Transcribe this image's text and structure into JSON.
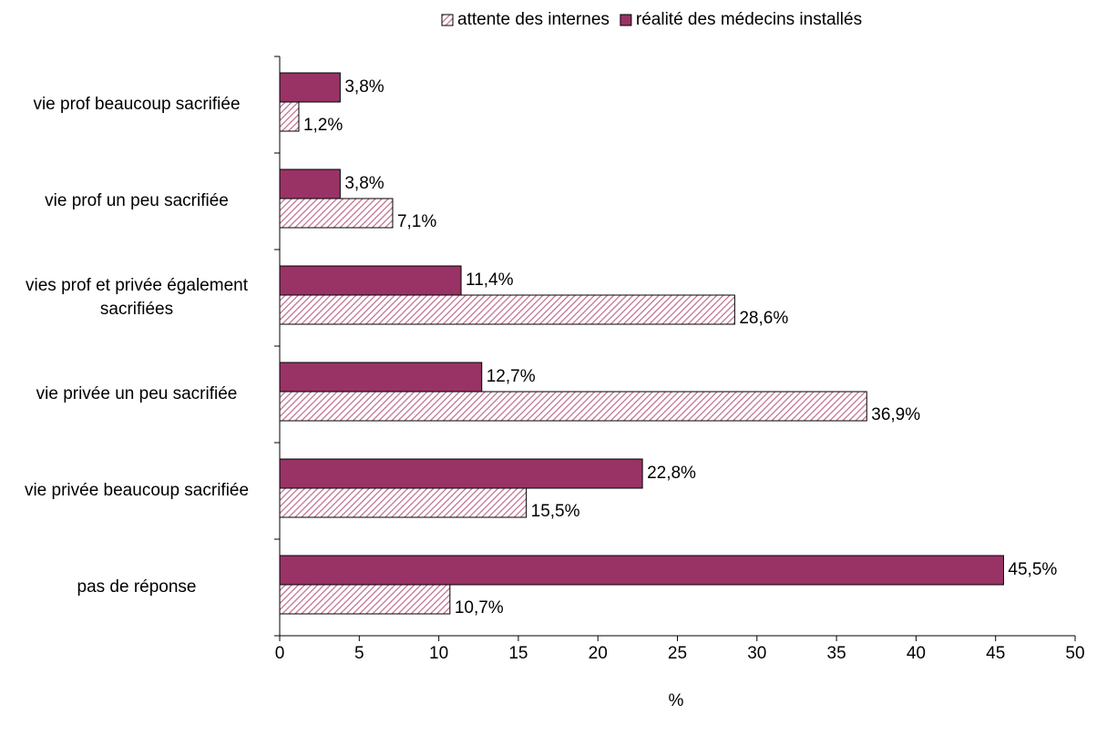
{
  "chart_data": {
    "type": "hbar",
    "categories": [
      "vie prof beaucoup sacrifiée",
      "vie prof un peu sacrifiée",
      "vies prof et privée également sacrifiées",
      "vie privée un peu sacrifiée",
      "vie privée beaucoup sacrifiée",
      "pas de réponse"
    ],
    "series": [
      {
        "name": "attente des internes",
        "color": "#993366",
        "hatch": true,
        "values": [
          1.2,
          7.1,
          28.6,
          36.9,
          15.5,
          10.7
        ],
        "value_labels": [
          "1,2%",
          "7,1%",
          "28,6%",
          "36,9%",
          "15,5%",
          "10,7%"
        ]
      },
      {
        "name": "réalité des médecins installés",
        "color": "#993366",
        "hatch": false,
        "values": [
          3.8,
          3.8,
          11.4,
          12.7,
          22.8,
          45.5
        ],
        "value_labels": [
          "3,8%",
          "3,8%",
          "11,4%",
          "12,7%",
          "22,8%",
          "45,5%"
        ]
      }
    ],
    "x_label": "%",
    "xlim": [
      0,
      50
    ],
    "xticks": [
      0,
      5,
      10,
      15,
      20,
      25,
      30,
      35,
      40,
      45,
      50
    ],
    "grid": false,
    "legend": "top"
  }
}
